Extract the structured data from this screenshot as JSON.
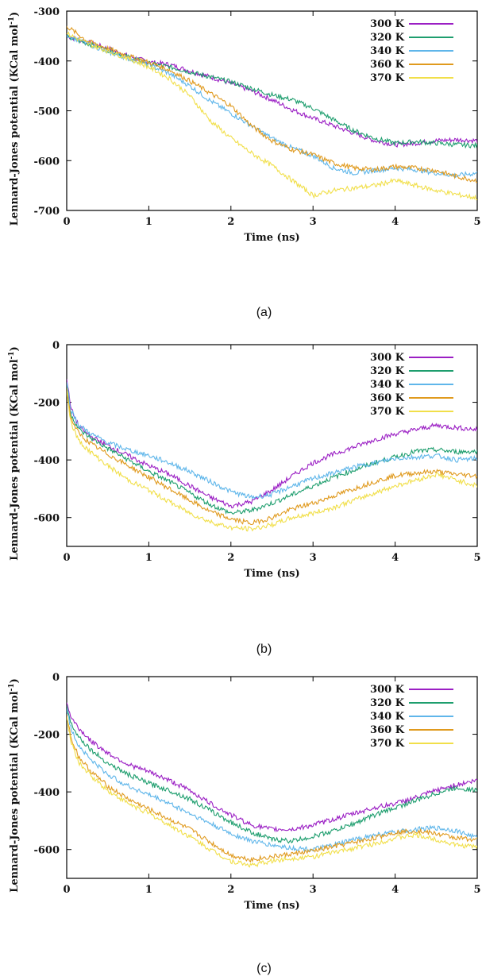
{
  "chart_data": [
    {
      "type": "line",
      "caption": "(a)",
      "xlabel": "Time (ns)",
      "ylabel_main": "Lennard-Jones potential (KCal mol",
      "ylabel_sup": "-1",
      "ylabel_end": ")",
      "xlim": [
        0,
        5
      ],
      "ylim": [
        -700,
        -300
      ],
      "xticks": [
        0,
        1,
        2,
        3,
        4,
        5
      ],
      "yticks": [
        -300,
        -400,
        -500,
        -600,
        -700
      ],
      "legend_position": "top-right",
      "grid": false,
      "series": [
        {
          "name": "300 K",
          "color": "#9b1fc4",
          "x": [
            0,
            0.25,
            0.5,
            0.75,
            1,
            1.25,
            1.5,
            1.75,
            2,
            2.25,
            2.5,
            2.75,
            3,
            3.25,
            3.5,
            3.75,
            4,
            4.25,
            4.5,
            4.75,
            5
          ],
          "y": [
            -350,
            -362,
            -375,
            -390,
            -402,
            -407,
            -420,
            -432,
            -445,
            -460,
            -478,
            -498,
            -515,
            -530,
            -545,
            -560,
            -568,
            -565,
            -560,
            -558,
            -560
          ]
        },
        {
          "name": "320 K",
          "color": "#1e9e6e",
          "x": [
            0,
            0.25,
            0.5,
            0.75,
            1,
            1.25,
            1.5,
            1.75,
            2,
            2.25,
            2.5,
            2.75,
            3,
            3.25,
            3.5,
            3.75,
            4,
            4.25,
            4.5,
            4.75,
            5
          ],
          "y": [
            -352,
            -365,
            -378,
            -392,
            -405,
            -412,
            -422,
            -432,
            -442,
            -455,
            -468,
            -478,
            -495,
            -518,
            -540,
            -555,
            -565,
            -562,
            -565,
            -568,
            -570
          ]
        },
        {
          "name": "340 K",
          "color": "#5fb6ea",
          "x": [
            0,
            0.25,
            0.5,
            0.75,
            1,
            1.25,
            1.5,
            1.75,
            2,
            2.25,
            2.5,
            2.75,
            3,
            3.25,
            3.5,
            3.75,
            4,
            4.25,
            4.5,
            4.75,
            5
          ],
          "y": [
            -348,
            -365,
            -382,
            -395,
            -408,
            -425,
            -450,
            -480,
            -505,
            -530,
            -555,
            -575,
            -590,
            -615,
            -625,
            -620,
            -615,
            -618,
            -625,
            -630,
            -625
          ]
        },
        {
          "name": "360 K",
          "color": "#e09a1e",
          "x": [
            0,
            0.25,
            0.5,
            0.75,
            1,
            1.25,
            1.5,
            1.75,
            2,
            2.25,
            2.5,
            2.75,
            3,
            3.25,
            3.5,
            3.75,
            4,
            4.25,
            4.5,
            4.75,
            5
          ],
          "y": [
            -330,
            -360,
            -375,
            -390,
            -403,
            -418,
            -440,
            -465,
            -490,
            -530,
            -560,
            -578,
            -588,
            -605,
            -615,
            -618,
            -612,
            -615,
            -620,
            -632,
            -640
          ]
        },
        {
          "name": "370 K",
          "color": "#f1df4a",
          "x": [
            0,
            0.25,
            0.5,
            0.75,
            1,
            1.25,
            1.5,
            1.75,
            2,
            2.25,
            2.5,
            2.75,
            3,
            3.25,
            3.5,
            3.75,
            4,
            4.25,
            4.5,
            4.75,
            5
          ],
          "y": [
            -345,
            -365,
            -380,
            -395,
            -412,
            -435,
            -470,
            -520,
            -555,
            -585,
            -610,
            -640,
            -670,
            -660,
            -655,
            -650,
            -640,
            -650,
            -660,
            -668,
            -675
          ]
        }
      ]
    },
    {
      "type": "line",
      "caption": "(b)",
      "xlabel": "Time (ns)",
      "ylabel_main": "Lennard-Jones potential (KCal mol",
      "ylabel_sup": "-1",
      "ylabel_end": ")",
      "xlim": [
        0,
        5
      ],
      "ylim": [
        -700,
        0
      ],
      "xticks": [
        0,
        1,
        2,
        3,
        4,
        5
      ],
      "yticks": [
        0,
        -200,
        -400,
        -600
      ],
      "legend_position": "top-right",
      "grid": false,
      "series": [
        {
          "name": "300 K",
          "color": "#9b1fc4",
          "x": [
            0,
            0.05,
            0.15,
            0.3,
            0.5,
            0.75,
            1,
            1.25,
            1.5,
            1.75,
            2,
            2.25,
            2.5,
            2.75,
            3,
            3.25,
            3.5,
            3.75,
            4,
            4.25,
            4.5,
            4.75,
            5
          ],
          "y": [
            -120,
            -220,
            -285,
            -320,
            -350,
            -385,
            -420,
            -450,
            -490,
            -530,
            -560,
            -545,
            -505,
            -455,
            -410,
            -380,
            -355,
            -330,
            -310,
            -295,
            -280,
            -288,
            -295
          ]
        },
        {
          "name": "320 K",
          "color": "#1e9e6e",
          "x": [
            0,
            0.05,
            0.15,
            0.3,
            0.5,
            0.75,
            1,
            1.25,
            1.5,
            1.75,
            2,
            2.25,
            2.5,
            2.75,
            3,
            3.25,
            3.5,
            3.75,
            4,
            4.25,
            4.5,
            4.75,
            5
          ],
          "y": [
            -140,
            -240,
            -295,
            -325,
            -360,
            -400,
            -440,
            -475,
            -515,
            -555,
            -585,
            -575,
            -550,
            -520,
            -490,
            -460,
            -435,
            -410,
            -390,
            -370,
            -365,
            -372,
            -370
          ]
        },
        {
          "name": "340 K",
          "color": "#5fb6ea",
          "x": [
            0,
            0.05,
            0.15,
            0.3,
            0.5,
            0.75,
            1,
            1.25,
            1.5,
            1.75,
            2,
            2.25,
            2.5,
            2.75,
            3,
            3.25,
            3.5,
            3.75,
            4,
            4.25,
            4.5,
            4.75,
            5
          ],
          "y": [
            -130,
            -225,
            -280,
            -310,
            -340,
            -365,
            -385,
            -410,
            -440,
            -475,
            -510,
            -530,
            -520,
            -490,
            -465,
            -445,
            -425,
            -410,
            -395,
            -390,
            -385,
            -400,
            -395
          ]
        },
        {
          "name": "360 K",
          "color": "#e09a1e",
          "x": [
            0,
            0.05,
            0.15,
            0.3,
            0.5,
            0.75,
            1,
            1.25,
            1.5,
            1.75,
            2,
            2.25,
            2.5,
            2.75,
            3,
            3.25,
            3.5,
            3.75,
            4,
            4.25,
            4.5,
            4.75,
            5
          ],
          "y": [
            -150,
            -255,
            -310,
            -345,
            -380,
            -420,
            -460,
            -500,
            -540,
            -580,
            -605,
            -620,
            -600,
            -570,
            -550,
            -525,
            -500,
            -475,
            -455,
            -445,
            -440,
            -450,
            -455
          ]
        },
        {
          "name": "370 K",
          "color": "#f1df4a",
          "x": [
            0,
            0.05,
            0.15,
            0.3,
            0.5,
            0.75,
            1,
            1.25,
            1.5,
            1.75,
            2,
            2.25,
            2.5,
            2.75,
            3,
            3.25,
            3.5,
            3.75,
            4,
            4.25,
            4.5,
            4.75,
            5
          ],
          "y": [
            -160,
            -270,
            -335,
            -375,
            -420,
            -470,
            -505,
            -545,
            -585,
            -615,
            -635,
            -640,
            -625,
            -600,
            -585,
            -565,
            -540,
            -515,
            -490,
            -470,
            -450,
            -470,
            -490
          ]
        }
      ]
    },
    {
      "type": "line",
      "caption": "(c)",
      "xlabel": "Time (ns)",
      "ylabel_main": "Lennard-Jones potential (KCal mol",
      "ylabel_sup": "-1",
      "ylabel_end": ")",
      "xlim": [
        0,
        5
      ],
      "ylim": [
        -700,
        0
      ],
      "xticks": [
        0,
        1,
        2,
        3,
        4,
        5
      ],
      "yticks": [
        0,
        -200,
        -400,
        -600
      ],
      "legend_position": "top-right",
      "grid": false,
      "series": [
        {
          "name": "300 K",
          "color": "#9b1fc4",
          "x": [
            0,
            0.05,
            0.15,
            0.3,
            0.5,
            0.75,
            1,
            1.25,
            1.5,
            1.75,
            2,
            2.25,
            2.5,
            2.75,
            3,
            3.25,
            3.5,
            3.75,
            4,
            4.25,
            4.5,
            4.75,
            5
          ],
          "y": [
            -90,
            -140,
            -180,
            -225,
            -265,
            -305,
            -330,
            -360,
            -395,
            -440,
            -480,
            -515,
            -530,
            -530,
            -515,
            -495,
            -475,
            -455,
            -440,
            -420,
            -395,
            -375,
            -360
          ]
        },
        {
          "name": "320 K",
          "color": "#1e9e6e",
          "x": [
            0,
            0.05,
            0.15,
            0.3,
            0.5,
            0.75,
            1,
            1.25,
            1.5,
            1.75,
            2,
            2.25,
            2.5,
            2.75,
            3,
            3.25,
            3.5,
            3.75,
            4,
            4.25,
            4.5,
            4.75,
            5
          ],
          "y": [
            -100,
            -160,
            -210,
            -255,
            -300,
            -340,
            -370,
            -395,
            -425,
            -465,
            -505,
            -540,
            -565,
            -570,
            -555,
            -535,
            -510,
            -480,
            -455,
            -430,
            -405,
            -385,
            -395
          ]
        },
        {
          "name": "340 K",
          "color": "#5fb6ea",
          "x": [
            0,
            0.05,
            0.15,
            0.3,
            0.5,
            0.75,
            1,
            1.25,
            1.5,
            1.75,
            2,
            2.25,
            2.5,
            2.75,
            3,
            3.25,
            3.5,
            3.75,
            4,
            4.25,
            4.5,
            4.75,
            5
          ],
          "y": [
            -110,
            -180,
            -240,
            -290,
            -340,
            -380,
            -410,
            -440,
            -475,
            -510,
            -545,
            -570,
            -585,
            -595,
            -600,
            -585,
            -565,
            -550,
            -540,
            -530,
            -525,
            -535,
            -560
          ]
        },
        {
          "name": "360 K",
          "color": "#e09a1e",
          "x": [
            0,
            0.05,
            0.15,
            0.3,
            0.5,
            0.75,
            1,
            1.25,
            1.5,
            1.75,
            2,
            2.25,
            2.5,
            2.75,
            3,
            3.25,
            3.5,
            3.75,
            4,
            4.25,
            4.5,
            4.75,
            5
          ],
          "y": [
            -130,
            -210,
            -280,
            -330,
            -380,
            -425,
            -460,
            -495,
            -530,
            -575,
            -620,
            -635,
            -625,
            -615,
            -605,
            -590,
            -575,
            -560,
            -540,
            -535,
            -545,
            -560,
            -565
          ]
        },
        {
          "name": "370 K",
          "color": "#f1df4a",
          "x": [
            0,
            0.05,
            0.15,
            0.3,
            0.5,
            0.75,
            1,
            1.25,
            1.5,
            1.75,
            2,
            2.25,
            2.5,
            2.75,
            3,
            3.25,
            3.5,
            3.75,
            4,
            4.25,
            4.5,
            4.75,
            5
          ],
          "y": [
            -140,
            -225,
            -300,
            -345,
            -395,
            -440,
            -475,
            -515,
            -555,
            -600,
            -640,
            -655,
            -640,
            -630,
            -625,
            -610,
            -595,
            -580,
            -560,
            -550,
            -565,
            -585,
            -590
          ]
        }
      ]
    }
  ]
}
